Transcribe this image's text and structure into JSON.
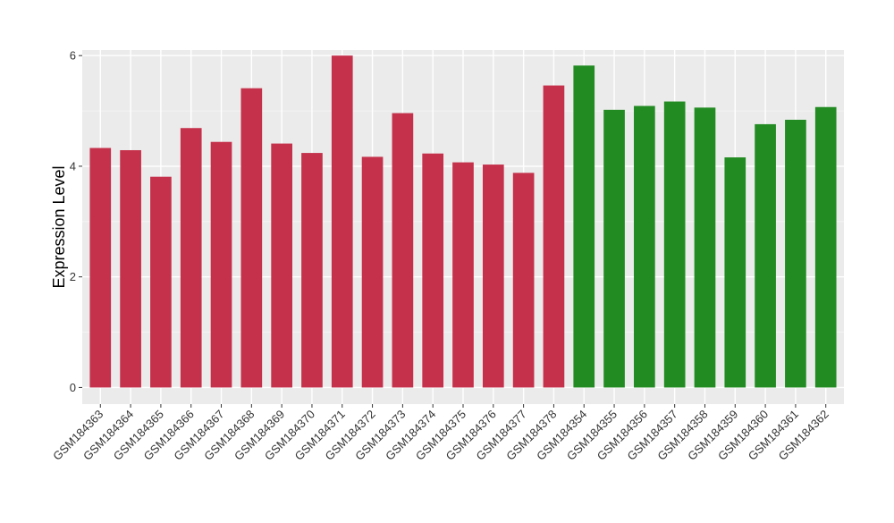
{
  "chart_data": {
    "type": "bar",
    "title": "",
    "xlabel": "",
    "ylabel": "Expression Level",
    "ylim": [
      -0.3,
      6.1
    ],
    "yticks": [
      0,
      2,
      4,
      6
    ],
    "grid": true,
    "legend": "none",
    "categories": [
      "GSM184363",
      "GSM184364",
      "GSM184365",
      "GSM184366",
      "GSM184367",
      "GSM184368",
      "GSM184369",
      "GSM184370",
      "GSM184371",
      "GSM184372",
      "GSM184373",
      "GSM184374",
      "GSM184375",
      "GSM184376",
      "GSM184377",
      "GSM184378",
      "GSM184354",
      "GSM184355",
      "GSM184356",
      "GSM184357",
      "GSM184358",
      "GSM184359",
      "GSM184360",
      "GSM184361",
      "GSM184362"
    ],
    "values": [
      4.33,
      4.29,
      3.81,
      4.69,
      4.44,
      5.41,
      4.41,
      4.24,
      6.0,
      4.17,
      4.96,
      4.23,
      4.07,
      4.03,
      3.88,
      5.46,
      5.82,
      5.02,
      5.09,
      5.17,
      5.06,
      4.16,
      4.76,
      4.84,
      5.07
    ],
    "colors": [
      "#c5304a",
      "#c5304a",
      "#c5304a",
      "#c5304a",
      "#c5304a",
      "#c5304a",
      "#c5304a",
      "#c5304a",
      "#c5304a",
      "#c5304a",
      "#c5304a",
      "#c5304a",
      "#c5304a",
      "#c5304a",
      "#c5304a",
      "#c5304a",
      "#228b22",
      "#228b22",
      "#228b22",
      "#228b22",
      "#228b22",
      "#228b22",
      "#228b22",
      "#228b22",
      "#228b22"
    ]
  },
  "style": {
    "panel_bg": "#ebebeb",
    "grid_major": "#ffffff",
    "grid_minor": "#f5f5f5",
    "tick_color": "#333333"
  }
}
